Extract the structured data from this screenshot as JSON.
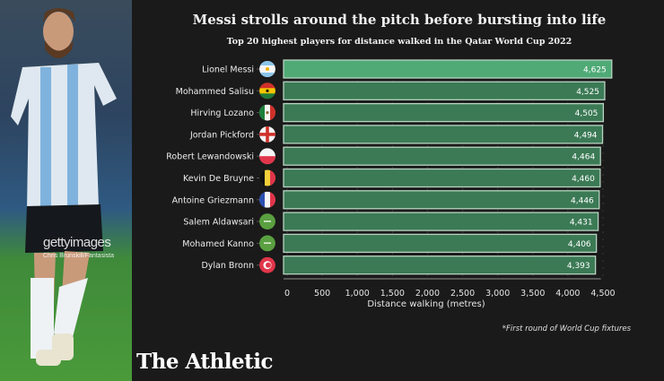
{
  "photo": {
    "watermark": "gettyimages",
    "credit": "Chris Brunskill/Fantasista"
  },
  "brand": "The Athletic",
  "footnote": "*First round of World Cup fixtures",
  "colors": {
    "background": "#1a1a1a",
    "highlight_bar": "#4faa76",
    "bar": "#3b7a55",
    "bar_border": "#b9d3c2",
    "text": "#f2f2f2"
  },
  "chart_data": {
    "type": "bar",
    "orientation": "horizontal",
    "title": "Messi strolls around the pitch before bursting into life",
    "subtitle": "Top 20 highest players for distance walked in the Qatar World Cup 2022",
    "xlabel": "Distance walking (metres)",
    "ylabel": "",
    "xlim": [
      0,
      4625
    ],
    "xticks": [
      0,
      500,
      1000,
      1500,
      2000,
      2500,
      3000,
      3500,
      4000,
      4500
    ],
    "xtick_labels": [
      "0",
      "500",
      "1,000",
      "1,500",
      "2,000",
      "2,500",
      "3,000",
      "3,500",
      "4,000",
      "4,500"
    ],
    "grid": true,
    "categories": [
      "Lionel Messi",
      "Mohammed Salisu",
      "Hirving Lozano",
      "Jordan Pickford",
      "Robert Lewandowski",
      "Kevin De Bruyne",
      "Antoine Griezmann",
      "Salem Aldawsari",
      "Mohamed Kanno",
      "Dylan Bronn"
    ],
    "flags": [
      "argentina-flag",
      "ghana-flag",
      "mexico-flag",
      "england-flag",
      "poland-flag",
      "belgium-flag",
      "france-flag",
      "saudi-arabia-flag",
      "saudi-arabia-flag",
      "tunisia-flag"
    ],
    "values": [
      4625,
      4525,
      4505,
      4494,
      4464,
      4460,
      4446,
      4431,
      4406,
      4393
    ],
    "value_labels": [
      "4,625",
      "4,525",
      "4,505",
      "4,494",
      "4,464",
      "4,460",
      "4,446",
      "4,431",
      "4,406",
      "4,393"
    ],
    "highlight": "Lionel Messi"
  }
}
